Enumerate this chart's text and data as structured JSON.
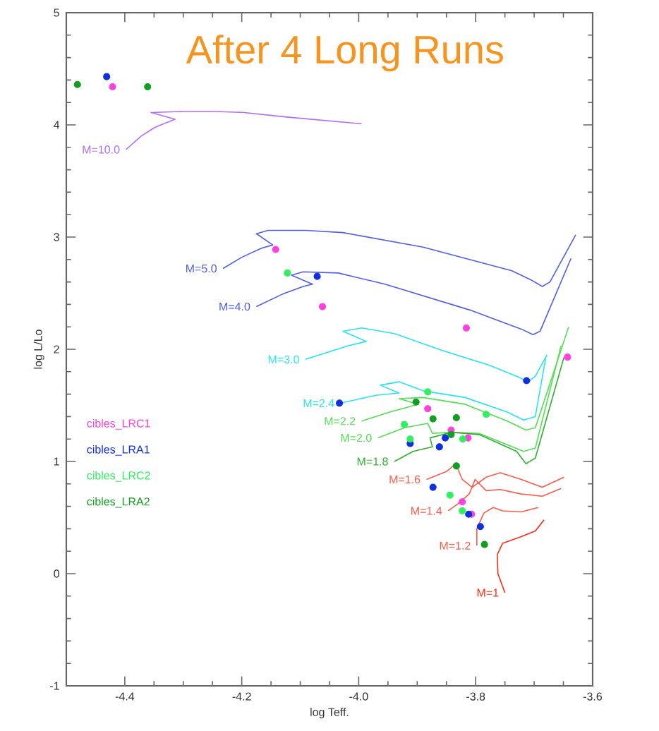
{
  "chart_data": {
    "type": "line",
    "title": "After 4 Long Runs",
    "xlabel": "log Teff.",
    "ylabel": "log L/Lo",
    "xlim": [
      -4.5,
      -3.6
    ],
    "ylim": [
      -1,
      5
    ],
    "xticks": [
      -4.4,
      -4.2,
      {
        "value": -4.0,
        "label": "-4.0"
      },
      -3.8,
      -3.6
    ],
    "yticks": [
      -1,
      0,
      1,
      2,
      3,
      4,
      5
    ],
    "grid": false,
    "legend": "left",
    "line_style": "solid",
    "series": [
      {
        "name": "M=10.0",
        "color": "#b36bff",
        "x": [
          -4.398,
          -4.372,
          -4.348,
          -4.314,
          -4.355,
          -4.3,
          -4.244,
          -4.196,
          -4.123,
          -3.995
        ],
        "values": [
          3.78,
          3.9,
          3.98,
          4.05,
          4.11,
          4.12,
          4.12,
          4.11,
          4.07,
          4.01
        ]
      },
      {
        "name": "M=5.0",
        "color": "#4f5fe6",
        "x": [
          -4.232,
          -4.2,
          -4.167,
          -4.147,
          -4.175,
          -4.155,
          -4.091,
          -4.027,
          -3.89,
          -3.738,
          -3.706,
          -3.686,
          -3.673,
          -3.629
        ],
        "values": [
          2.72,
          2.82,
          2.9,
          2.93,
          3.03,
          3.06,
          3.06,
          3.04,
          2.91,
          2.7,
          2.62,
          2.56,
          2.6,
          3.02
        ]
      },
      {
        "name": "M=4.0",
        "color": "#4f5fe6",
        "x": [
          -4.175,
          -4.131,
          -4.095,
          -4.079,
          -4.115,
          -4.095,
          -4.035,
          -3.955,
          -3.81,
          -3.722,
          -3.702,
          -3.69,
          -3.637
        ],
        "values": [
          2.38,
          2.49,
          2.56,
          2.58,
          2.66,
          2.69,
          2.68,
          2.58,
          2.35,
          2.18,
          2.13,
          2.16,
          2.81
        ]
      },
      {
        "name": "M=3.0",
        "color": "#27e6f0",
        "x": [
          -4.091,
          -4.019,
          -3.987,
          -4.027,
          -3.995,
          -3.939,
          -3.858,
          -3.778,
          -3.73,
          -3.71,
          -3.698,
          -3.678
        ],
        "values": [
          1.91,
          2.03,
          2.07,
          2.16,
          2.19,
          2.14,
          1.99,
          1.86,
          1.76,
          1.71,
          1.76,
          1.95
        ]
      },
      {
        "name": "M=2.4",
        "color": "#27e6f0",
        "x": [
          -4.031,
          -3.971,
          -3.931,
          -3.963,
          -3.931,
          -3.89,
          -3.818,
          -3.746,
          -3.718,
          -3.698,
          -3.68
        ],
        "values": [
          1.52,
          1.59,
          1.61,
          1.68,
          1.71,
          1.63,
          1.57,
          1.44,
          1.37,
          1.4,
          1.93
        ]
      },
      {
        "name": "M=2.2",
        "color": "#52e052",
        "x": [
          -3.995,
          -3.947,
          -3.898,
          -3.931,
          -3.89,
          -3.818,
          -3.746,
          -3.714,
          -3.698,
          -3.641
        ],
        "values": [
          1.36,
          1.44,
          1.51,
          1.56,
          1.57,
          1.51,
          1.36,
          1.28,
          1.3,
          2.2
        ]
      },
      {
        "name": "M=2.0",
        "color": "#52e052",
        "x": [
          -3.967,
          -3.922,
          -3.882,
          -3.874,
          -3.842,
          -3.794,
          -3.746,
          -3.718,
          -3.698,
          -3.654
        ],
        "values": [
          1.21,
          1.3,
          1.34,
          1.25,
          1.26,
          1.25,
          1.15,
          1.09,
          1.12,
          2.03
        ]
      },
      {
        "name": "M=1.8",
        "color": "#30b030",
        "x": [
          -3.939,
          -3.907,
          -3.874,
          -3.878,
          -3.842,
          -3.794,
          -3.73,
          -3.714,
          -3.698,
          -3.649
        ],
        "values": [
          1.0,
          1.09,
          1.13,
          1.21,
          1.26,
          1.24,
          1.09,
          0.98,
          1.03,
          1.93
        ]
      },
      {
        "name": "M=1.6",
        "color": "#ff5a4a",
        "x": [
          -3.884,
          -3.85,
          -3.834,
          -3.823,
          -3.806,
          -3.782,
          -3.758,
          -3.722,
          -3.686,
          -3.649
        ],
        "values": [
          0.84,
          0.91,
          0.98,
          0.84,
          0.77,
          0.86,
          0.9,
          0.84,
          0.77,
          0.86
        ]
      },
      {
        "name": "M=1.4",
        "color": "#ff5a4a",
        "x": [
          -3.847,
          -3.831,
          -3.811,
          -3.801,
          -3.782,
          -3.758,
          -3.722,
          -3.686,
          -3.654
        ],
        "values": [
          0.56,
          0.62,
          0.71,
          0.84,
          0.74,
          0.75,
          0.71,
          0.69,
          0.76
        ]
      },
      {
        "name": "M=1.2",
        "color": "#ff5a4a",
        "x": [
          -3.798,
          -3.798,
          -3.786,
          -3.77,
          -3.754,
          -3.722,
          -3.693
        ],
        "values": [
          0.25,
          0.4,
          0.54,
          0.59,
          0.56,
          0.55,
          0.59
        ]
      },
      {
        "name": "M=1",
        "color": "#ff2a10",
        "x": [
          -3.75,
          -3.762,
          -3.763,
          -3.754,
          -3.722,
          -3.698,
          -3.683
        ],
        "values": [
          -0.17,
          0.0,
          0.17,
          0.27,
          0.33,
          0.38,
          0.48
        ]
      },
      {
        "name": "cibles_LRC1",
        "type": "scatter",
        "color": "#ff40e0",
        "x": [
          -4.421,
          -4.142,
          -4.062,
          -3.816,
          -3.643,
          -3.882,
          -3.842,
          -3.813,
          -3.823,
          -3.807
        ],
        "values": [
          4.34,
          2.89,
          2.38,
          2.19,
          1.93,
          1.47,
          1.28,
          1.21,
          0.64,
          0.53
        ]
      },
      {
        "name": "cibles_LRA1",
        "type": "scatter",
        "color": "#1030e0",
        "x": [
          -4.431,
          -4.071,
          -3.713,
          -4.033,
          -3.912,
          -3.852,
          -3.862,
          -3.873,
          -3.812,
          -3.792
        ],
        "values": [
          4.43,
          2.65,
          1.72,
          1.52,
          1.16,
          1.21,
          1.13,
          0.77,
          0.53,
          0.42
        ]
      },
      {
        "name": "cibles_LRC2",
        "type": "scatter",
        "color": "#30f060",
        "x": [
          -4.122,
          -3.882,
          -3.782,
          -3.922,
          -3.912,
          -3.822,
          -3.844,
          -3.823
        ],
        "values": [
          2.68,
          1.62,
          1.42,
          1.33,
          1.2,
          1.2,
          0.7,
          0.56
        ]
      },
      {
        "name": "cibles_LRA2",
        "type": "scatter",
        "color": "#10a020",
        "x": [
          -4.481,
          -4.361,
          -3.902,
          -3.873,
          -3.833,
          -3.842,
          -3.833,
          -3.785
        ],
        "values": [
          4.36,
          4.34,
          1.53,
          1.38,
          1.39,
          1.24,
          0.96,
          0.26
        ]
      }
    ]
  }
}
